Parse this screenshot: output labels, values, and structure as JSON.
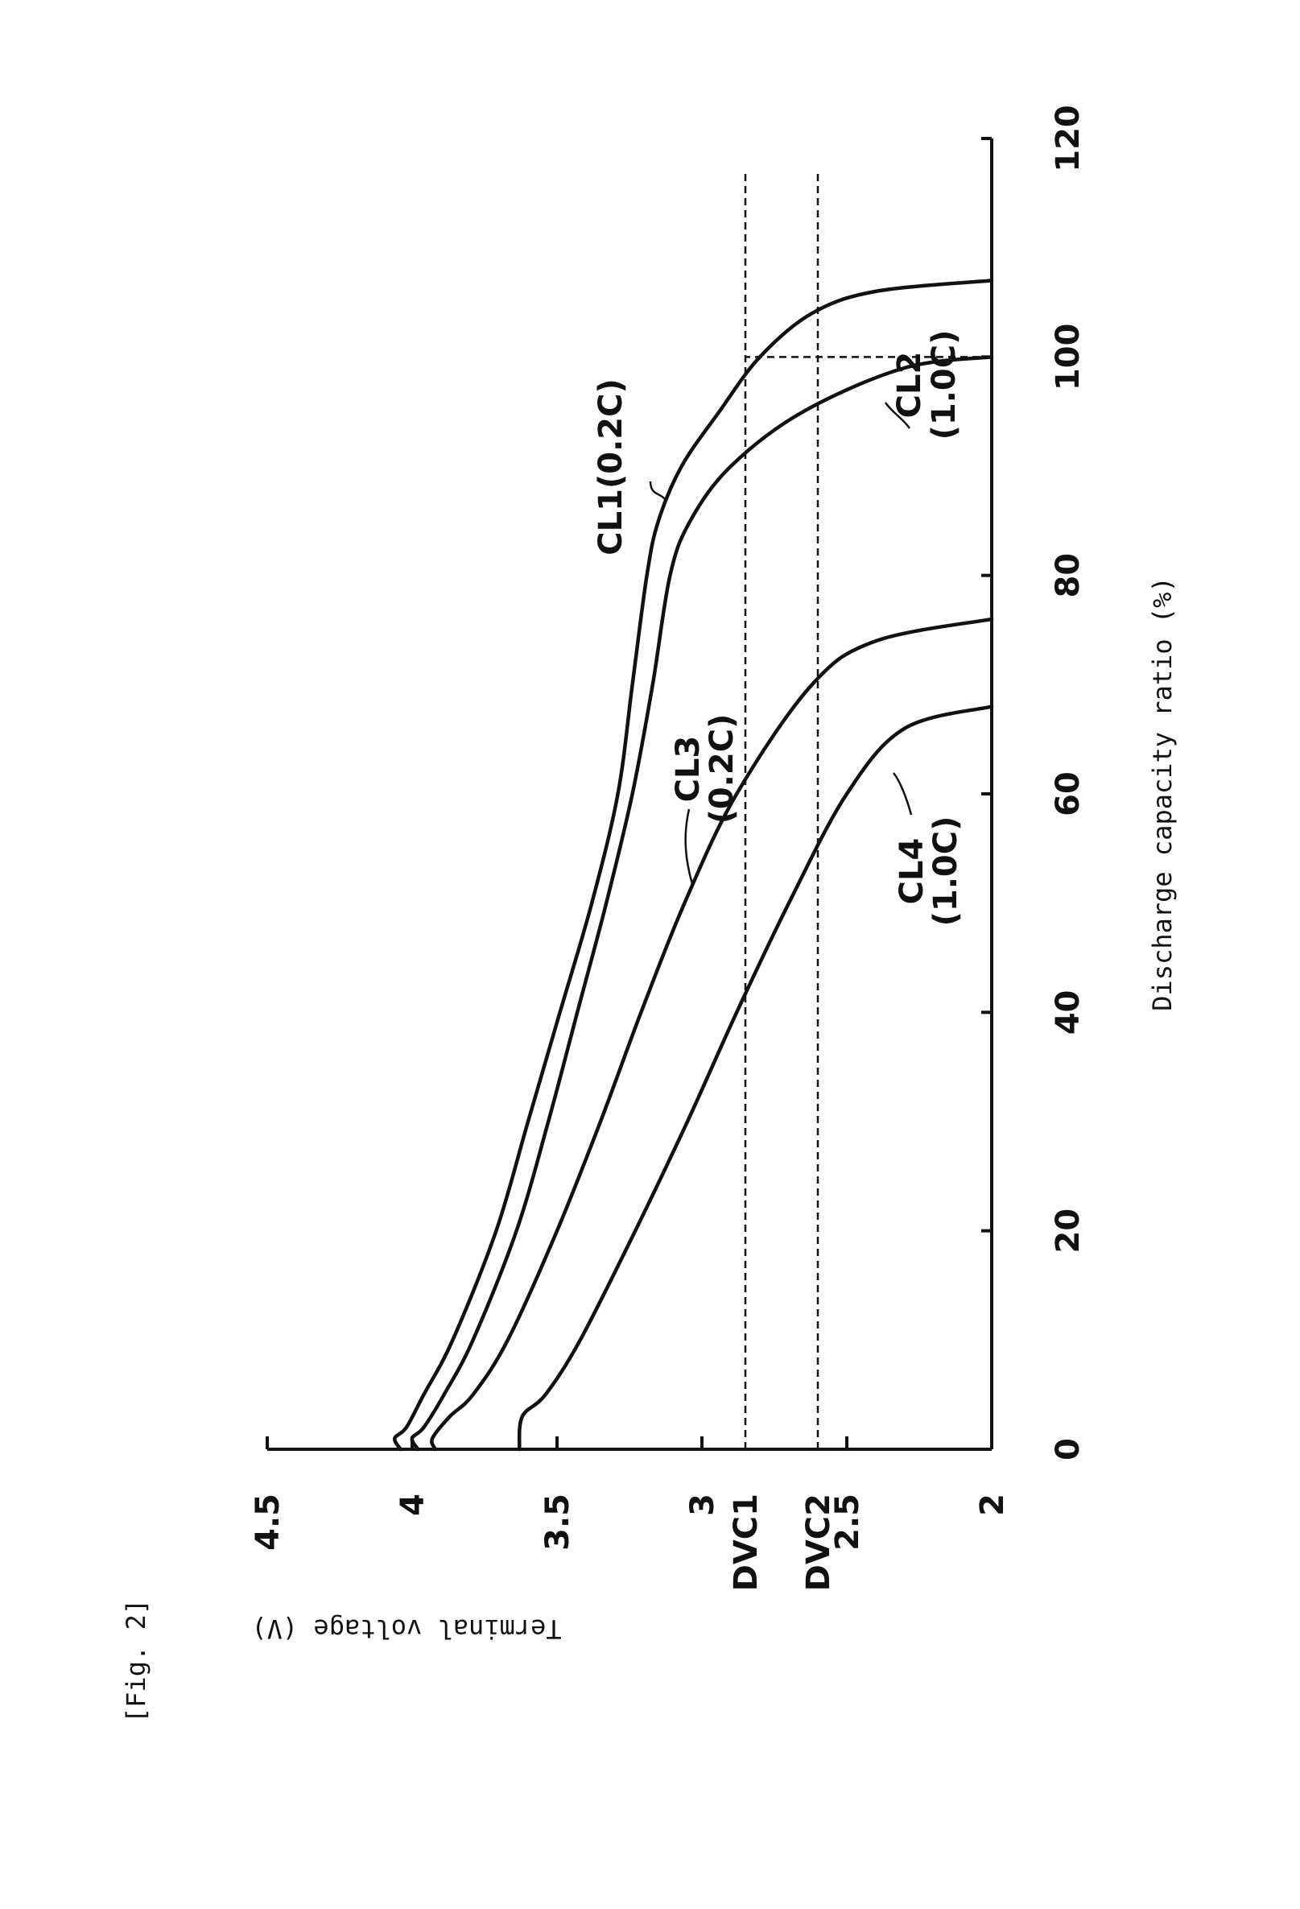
{
  "figure_label": "[Fig. 2]",
  "chart_data": {
    "type": "line",
    "xlabel": "Discharge capacity ratio (%)",
    "ylabel": "Terminal voltage (V)",
    "xlim": [
      0,
      120
    ],
    "ylim": [
      2,
      4.5
    ],
    "x_ticks": [
      "0",
      "20",
      "40",
      "60",
      "80",
      "100",
      "120"
    ],
    "y_ticks": [
      "2",
      "2.5",
      "3",
      "3.5",
      "4",
      "4.5"
    ],
    "reference_lines": [
      {
        "label": "DVC1",
        "y": 2.85
      },
      {
        "label": "DVC2",
        "y": 2.6
      }
    ],
    "vertical_marks": [
      {
        "x": 100,
        "y_from": 2.0,
        "y_to": 2.85
      }
    ],
    "series": [
      {
        "name": "CL1 (0.2C)",
        "label_line1": "CL1(0.2C)",
        "label_line2": "",
        "points": [
          [
            0,
            4.04
          ],
          [
            1,
            4.06
          ],
          [
            2,
            4.02
          ],
          [
            5,
            3.96
          ],
          [
            10,
            3.86
          ],
          [
            20,
            3.71
          ],
          [
            30,
            3.6
          ],
          [
            40,
            3.49
          ],
          [
            50,
            3.38
          ],
          [
            60,
            3.29
          ],
          [
            70,
            3.24
          ],
          [
            80,
            3.19
          ],
          [
            85,
            3.15
          ],
          [
            90,
            3.07
          ],
          [
            95,
            2.94
          ],
          [
            100,
            2.8
          ],
          [
            104,
            2.62
          ],
          [
            106,
            2.4
          ],
          [
            107,
            2.0
          ]
        ]
      },
      {
        "name": "CL2 (1.0C)",
        "label_line1": "CL2",
        "label_line2": "(1.0C)",
        "points": [
          [
            0,
            3.98
          ],
          [
            1,
            4.0
          ],
          [
            2,
            3.96
          ],
          [
            5,
            3.89
          ],
          [
            10,
            3.79
          ],
          [
            20,
            3.64
          ],
          [
            30,
            3.53
          ],
          [
            40,
            3.43
          ],
          [
            50,
            3.33
          ],
          [
            60,
            3.24
          ],
          [
            70,
            3.17
          ],
          [
            80,
            3.11
          ],
          [
            85,
            3.04
          ],
          [
            90,
            2.9
          ],
          [
            95,
            2.65
          ],
          [
            99,
            2.3
          ],
          [
            100,
            2.0
          ]
        ]
      },
      {
        "name": "CL3 (0.2C)",
        "label_line1": "CL3",
        "label_line2": "(0.2C)",
        "points": [
          [
            0,
            3.92
          ],
          [
            1,
            3.93
          ],
          [
            3,
            3.87
          ],
          [
            5,
            3.79
          ],
          [
            10,
            3.67
          ],
          [
            20,
            3.5
          ],
          [
            30,
            3.35
          ],
          [
            40,
            3.21
          ],
          [
            50,
            3.06
          ],
          [
            60,
            2.88
          ],
          [
            70,
            2.62
          ],
          [
            74,
            2.4
          ],
          [
            76,
            2.0
          ]
        ]
      },
      {
        "name": "CL4 (1.0C)",
        "label_line1": "CL4",
        "label_line2": "(1.0C)",
        "points": [
          [
            0,
            3.63
          ],
          [
            3,
            3.62
          ],
          [
            5,
            3.54
          ],
          [
            10,
            3.42
          ],
          [
            20,
            3.23
          ],
          [
            30,
            3.05
          ],
          [
            40,
            2.88
          ],
          [
            50,
            2.7
          ],
          [
            60,
            2.5
          ],
          [
            66,
            2.3
          ],
          [
            68,
            2.0
          ]
        ]
      }
    ]
  }
}
